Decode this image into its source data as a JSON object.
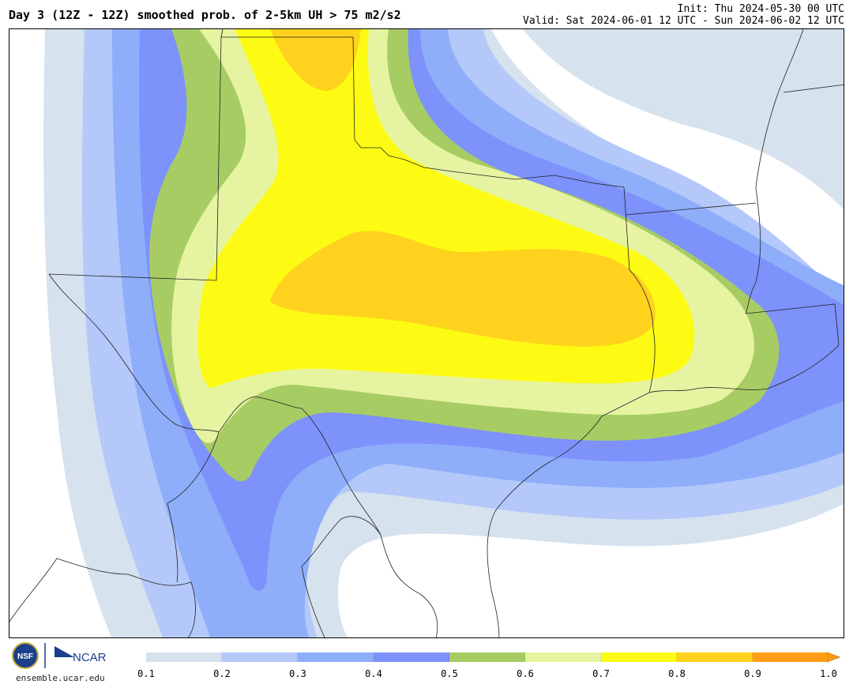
{
  "header": {
    "title": "Day 3 (12Z - 12Z) smoothed prob. of 2-5km UH > 75 m2/s2",
    "init": "Init: Thu 2024-05-30 00 UTC",
    "valid": "Valid: Sat 2024-06-01 12 UTC - Sun 2024-06-02 12 UTC"
  },
  "footer": {
    "site": "ensemble.ucar.edu",
    "logo_nsf": "NSF",
    "logo_ncar": "NCAR"
  },
  "colorbar": {
    "ticks": [
      "0.1",
      "0.2",
      "0.3",
      "0.4",
      "0.5",
      "0.6",
      "0.7",
      "0.8",
      "0.9",
      "1.0"
    ],
    "colors": [
      "#d6e2ee",
      "#b4c8fa",
      "#8eaefa",
      "#7d92fa",
      "#a8cc64",
      "#e6f4a2",
      "#fdfb14",
      "#fed21d",
      "#ff9d14"
    ]
  },
  "map_colors": {
    "p01": "#d6e2ee",
    "p02": "#b4c8fa",
    "p03": "#8eaefa",
    "p04": "#7d92fa",
    "p05": "#a8cc64",
    "p06": "#e6f4a2",
    "p07": "#fdfb14",
    "p08": "#fed21d"
  }
}
